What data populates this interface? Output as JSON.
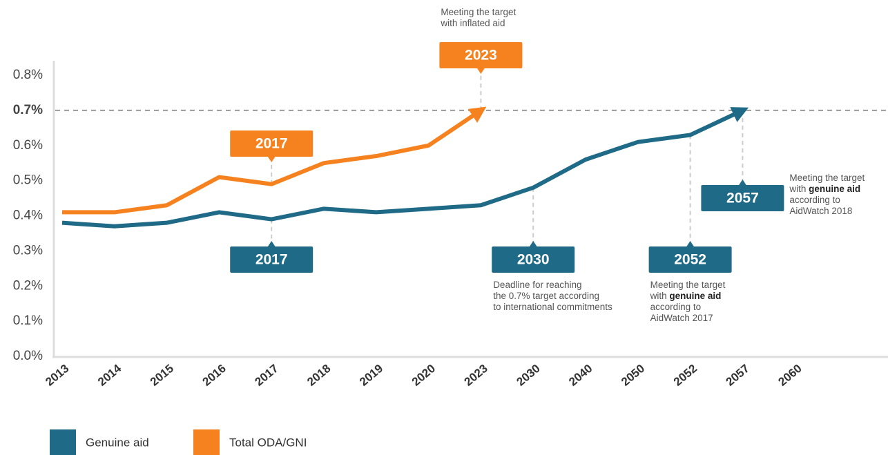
{
  "chart_data": {
    "type": "line",
    "categories": [
      "2013",
      "2014",
      "2015",
      "2016",
      "2017",
      "2018",
      "2019",
      "2020",
      "2023",
      "2030",
      "2040",
      "2050",
      "2052",
      "2057",
      "2060"
    ],
    "series": [
      {
        "name": "Genuine aid",
        "color": "#1f6b87",
        "values": [
          0.38,
          0.37,
          0.38,
          0.41,
          0.39,
          0.42,
          0.41,
          0.42,
          0.43,
          0.48,
          0.56,
          0.61,
          0.63,
          0.7,
          null
        ]
      },
      {
        "name": "Total ODA/GNI",
        "color": "#f5821f",
        "values": [
          0.41,
          0.41,
          0.43,
          0.51,
          0.49,
          0.55,
          0.57,
          0.6,
          0.7,
          null,
          null,
          null,
          null,
          null,
          null
        ]
      }
    ],
    "ylim": [
      0,
      0.8
    ],
    "yticks": [
      {
        "value": 0,
        "label": "0.0%"
      },
      {
        "value": 0.1,
        "label": "0.1%"
      },
      {
        "value": 0.2,
        "label": "0.2%"
      },
      {
        "value": 0.3,
        "label": "0.3%"
      },
      {
        "value": 0.4,
        "label": "0.4%"
      },
      {
        "value": 0.5,
        "label": "0.5%"
      },
      {
        "value": 0.6,
        "label": "0.6%"
      },
      {
        "value": 0.7,
        "label": "0.7%"
      },
      {
        "value": 0.8,
        "label": "0.8%"
      }
    ],
    "reference_line": 0.7,
    "legend": "bottom",
    "annotations": [
      {
        "label": "2017",
        "color": "#f5821f",
        "text": []
      },
      {
        "label": "2017",
        "color": "#1f6b87",
        "text": []
      },
      {
        "label": "2023",
        "color": "#f5821f",
        "text": [
          [
            {
              "text": "Meeting the target"
            }
          ],
          [
            {
              "text": "with inflated aid"
            }
          ]
        ]
      },
      {
        "label": "2030",
        "color": "#1f6b87",
        "text": [
          [
            {
              "text": "Deadline for reaching"
            }
          ],
          [
            {
              "text": "the 0.7% target according"
            }
          ],
          [
            {
              "text": "to international commitments"
            }
          ]
        ]
      },
      {
        "label": "2052",
        "color": "#1f6b87",
        "text": [
          [
            {
              "text": "Meeting the target"
            }
          ],
          [
            {
              "text": "with "
            },
            {
              "text": "genuine aid",
              "bold": true
            }
          ],
          [
            {
              "text": "according to"
            }
          ],
          [
            {
              "text": "AidWatch 2017"
            }
          ]
        ]
      },
      {
        "label": "2057",
        "color": "#1f6b87",
        "text": [
          [
            {
              "text": "Meeting the target"
            }
          ],
          [
            {
              "text": "with "
            },
            {
              "text": "genuine aid",
              "bold": true
            }
          ],
          [
            {
              "text": "according to"
            }
          ],
          [
            {
              "text": "AidWatch 2018"
            }
          ]
        ]
      }
    ]
  }
}
